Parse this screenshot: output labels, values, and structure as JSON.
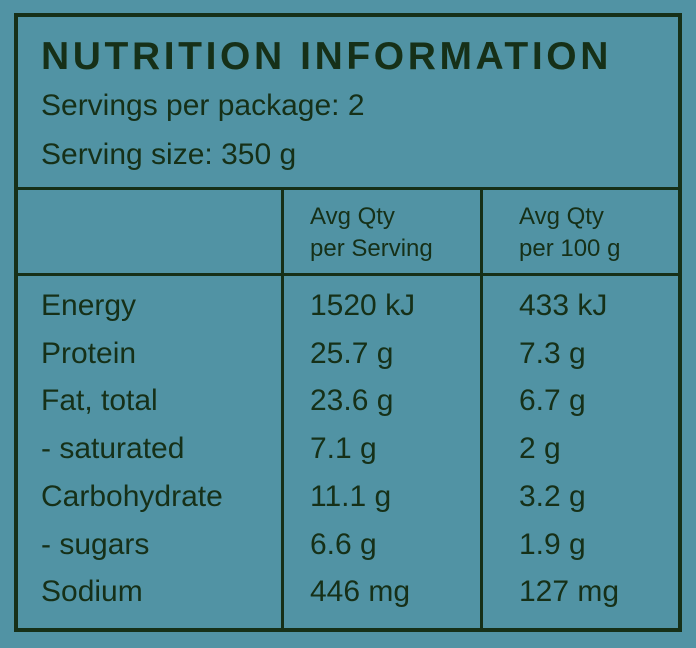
{
  "title": "NUTRITION INFORMATION",
  "servings_per_package": "Servings per package: 2",
  "serving_size": "Serving size: 350 g",
  "columns": [
    {
      "line1": "Avg Qty",
      "line2": "per Serving"
    },
    {
      "line1": "Avg Qty",
      "line2": "per 100 g"
    }
  ],
  "rows": [
    {
      "name": "Energy",
      "per_serving": "1520 kJ",
      "per_100g": "433 kJ"
    },
    {
      "name": "Protein",
      "per_serving": "25.7 g",
      "per_100g": "7.3 g"
    },
    {
      "name": "Fat, total",
      "per_serving": "23.6 g",
      "per_100g": "6.7 g"
    },
    {
      "name": "- saturated",
      "per_serving": "7.1 g",
      "per_100g": "2 g"
    },
    {
      "name": "Carbohydrate",
      "per_serving": "11.1 g",
      "per_100g": "3.2 g"
    },
    {
      "name": "- sugars",
      "per_serving": "6.6 g",
      "per_100g": "1.9 g"
    },
    {
      "name": "Sodium",
      "per_serving": "446 mg",
      "per_100g": "127 mg"
    }
  ]
}
